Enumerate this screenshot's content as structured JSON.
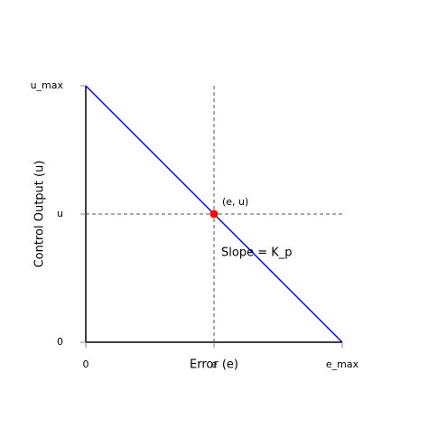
{
  "chart_data": {
    "type": "line",
    "xlabel": "Error (e)",
    "ylabel": "Control Output (u)",
    "xlim": [
      0,
      2
    ],
    "ylim": [
      0,
      2
    ],
    "xticks": [
      0,
      {
        "value": 1,
        "label": "e"
      },
      {
        "value": 2,
        "label": "e_max"
      }
    ],
    "yticks": [
      0,
      {
        "value": 1,
        "label": "u"
      },
      {
        "value": 2,
        "label": "u_max"
      }
    ],
    "series": [
      {
        "x": [
          0,
          2
        ],
        "values": [
          2,
          0
        ],
        "color": "#0000ff"
      }
    ],
    "point": {
      "x": 1,
      "y": 1,
      "color": "#ff0000",
      "label": "(e, u)"
    },
    "annotation": {
      "text": "Slope = K_p",
      "color": "#0000ff"
    }
  }
}
